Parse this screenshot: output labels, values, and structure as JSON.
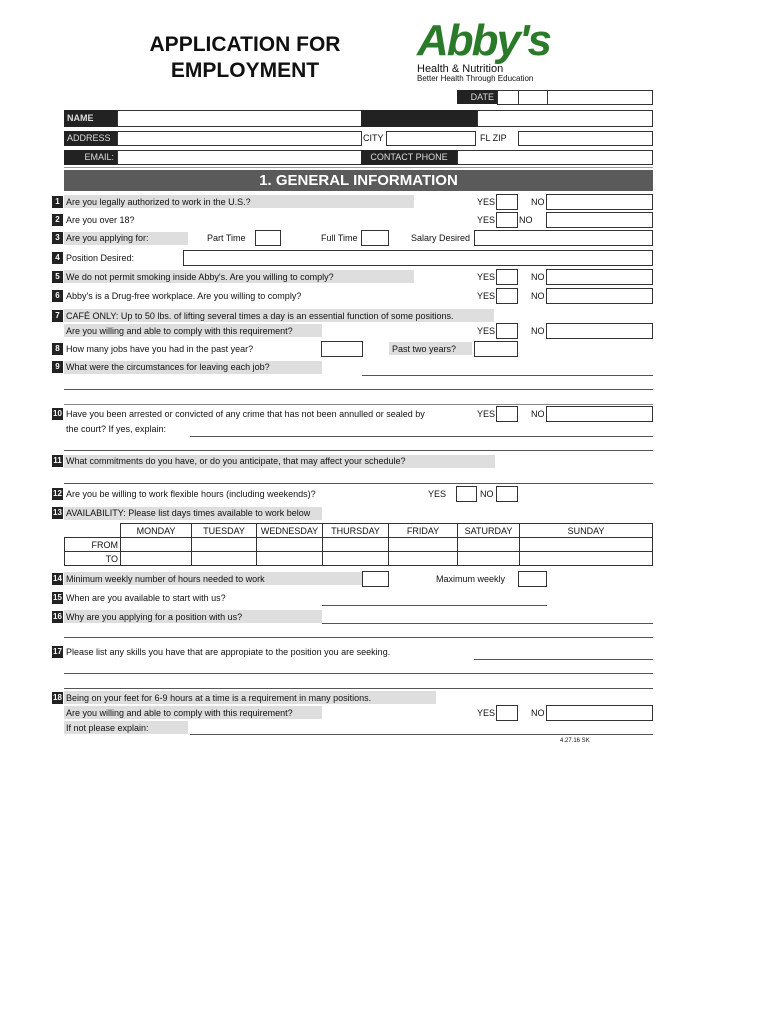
{
  "header": {
    "title_line1": "APPLICATION FOR",
    "title_line2": "EMPLOYMENT",
    "logo": {
      "brand": "Abby's",
      "line1": "Health & Nutrition",
      "line2": "Better Health Through Education",
      "color": "#2a7a2a"
    }
  },
  "personal": {
    "date": "DATE",
    "name": "NAME",
    "address": "ADDRESS",
    "city": "CITY",
    "fl_zip": "FL  ZIP",
    "email": "EMAIL:",
    "contact_phone": "CONTACT PHONE"
  },
  "section_title": "1. GENERAL INFORMATION",
  "yes": "YES",
  "no": "NO",
  "questions": {
    "q1": {
      "num": "1",
      "text": "Are you legally authorized to work in the U.S.?"
    },
    "q2": {
      "num": "2",
      "text": "Are you over 18?"
    },
    "q3": {
      "num": "3",
      "text": "Are you applying for:",
      "part_time": "Part Time",
      "full_time": "Full Time",
      "salary": "Salary Desired"
    },
    "q4": {
      "num": "4",
      "text": "Position Desired:"
    },
    "q5": {
      "num": "5",
      "text": "We do not permit smoking inside Abby's. Are you willing to comply?"
    },
    "q6": {
      "num": "6",
      "text": "Abby's is a Drug-free workplace. Are you willing to comply?"
    },
    "q7": {
      "num": "7",
      "text": "CAFÉ ONLY: Up to 50 lbs. of lifting several times a day is an essential function of some positions.",
      "text2": "Are you willing and able to comply with this requirement?"
    },
    "q8": {
      "num": "8",
      "text": "How many jobs have you had in the past year?",
      "past_two": "Past two years?"
    },
    "q9": {
      "num": "9",
      "text": "What were the circumstances for leaving each job?"
    },
    "q10": {
      "num": "10",
      "text": "Have you been arrested or convicted of any crime that has not been annulled or sealed by",
      "text2": "the court? If yes, explain:"
    },
    "q11": {
      "num": "11",
      "text": "What commitments do you have, or do you anticipate, that may affect your schedule?"
    },
    "q12": {
      "num": "12",
      "text": "Are you be willing to work flexible hours (including weekends)?"
    },
    "q13": {
      "num": "13",
      "text": "AVAILABILITY: Please list days times available to work below"
    },
    "q14": {
      "num": "14",
      "text": "Minimum weekly number of hours needed to work",
      "max": "Maximum weekly"
    },
    "q15": {
      "num": "15",
      "text": "When are you available to start with us?"
    },
    "q16": {
      "num": "16",
      "text": "Why are you applying for a position with us?"
    },
    "q17": {
      "num": "17",
      "text": "Please list any skills you have that are appropiate to the position you are seeking."
    },
    "q18": {
      "num": "18",
      "text": "Being on your feet for 6-9 hours at a time is a requirement in many positions.",
      "text2": "Are you willing and able to comply with this requirement?",
      "text3": "If not please explain:"
    }
  },
  "availability": {
    "days": [
      "MONDAY",
      "TUESDAY",
      "WEDNESDAY",
      "THURSDAY",
      "FRIDAY",
      "SATURDAY",
      "SUNDAY"
    ],
    "rows": [
      "FROM",
      "TO"
    ]
  },
  "footer": "4.27.16 SK"
}
